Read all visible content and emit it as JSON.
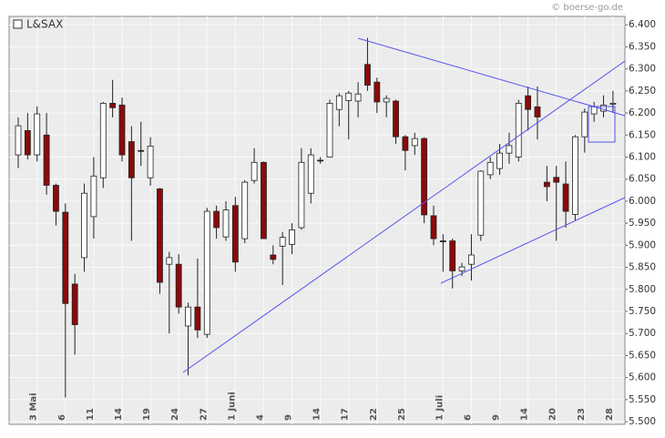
{
  "chart_data": {
    "type": "candlestick",
    "title": "L&SAX",
    "credit": "© boerse-go.de",
    "categories": [
      null,
      null,
      "3 Mai",
      null,
      null,
      "6",
      null,
      null,
      "11",
      null,
      null,
      "14",
      null,
      null,
      "19",
      null,
      null,
      "24",
      null,
      null,
      "27",
      null,
      null,
      "1 Juni",
      null,
      null,
      "4",
      null,
      null,
      "9",
      null,
      null,
      "14",
      null,
      null,
      "17",
      null,
      null,
      "22",
      null,
      null,
      "25",
      null,
      null,
      null,
      "1 Juli",
      null,
      null,
      "6",
      null,
      null,
      "9",
      null,
      null,
      "14",
      null,
      null,
      "20",
      null,
      null,
      "23",
      null,
      null,
      "28"
    ],
    "open": [
      6.105,
      6.16,
      6.105,
      6.15,
      6.036,
      5.975,
      5.812,
      5.872,
      5.965,
      6.053,
      6.222,
      6.218,
      6.135,
      6.115,
      6.053,
      6.028,
      5.857,
      5.857,
      5.717,
      5.76,
      5.698,
      5.977,
      5.919,
      5.99,
      5.915,
      6.047,
      6.088,
      5.878,
      5.898,
      5.902,
      5.94,
      6.018,
      6.093,
      6.1,
      6.208,
      6.228,
      6.227,
      6.31,
      6.27,
      6.225,
      6.227,
      6.146,
      6.126,
      6.142,
      5.967,
      5.91,
      5.91,
      5.842,
      5.857,
      5.923,
      6.06,
      6.074,
      6.109,
      6.1,
      6.239,
      6.214,
      6.043,
      6.054,
      6.039,
      5.97,
      6.146,
      6.198,
      6.204,
      6.222
    ],
    "high": [
      6.19,
      6.2,
      6.215,
      6.2,
      6.04,
      5.995,
      5.835,
      6.04,
      6.1,
      6.225,
      6.275,
      6.235,
      6.17,
      6.18,
      6.145,
      6.03,
      5.885,
      5.88,
      5.77,
      5.87,
      5.985,
      5.99,
      6.0,
      6.01,
      6.048,
      6.12,
      6.09,
      5.9,
      5.93,
      5.95,
      6.12,
      6.12,
      6.1,
      6.23,
      6.245,
      6.25,
      6.27,
      6.37,
      6.28,
      6.24,
      6.23,
      6.15,
      6.155,
      6.145,
      5.99,
      5.925,
      5.915,
      5.86,
      5.925,
      6.07,
      6.1,
      6.13,
      6.155,
      6.23,
      6.26,
      6.26,
      6.08,
      6.08,
      6.09,
      6.15,
      6.21,
      6.225,
      6.24,
      6.25
    ],
    "low": [
      6.075,
      6.095,
      6.09,
      6.015,
      5.945,
      5.555,
      5.652,
      5.84,
      5.915,
      6.03,
      6.19,
      6.09,
      5.91,
      6.08,
      6.035,
      5.79,
      5.7,
      5.745,
      5.605,
      5.69,
      5.69,
      5.915,
      5.91,
      5.84,
      5.905,
      6.04,
      5.915,
      5.857,
      5.81,
      5.88,
      5.935,
      5.995,
      6.085,
      6.1,
      6.17,
      6.14,
      6.19,
      6.25,
      6.2,
      6.19,
      6.13,
      6.07,
      6.105,
      5.95,
      5.9,
      5.84,
      5.802,
      5.83,
      5.82,
      5.91,
      6.05,
      6.06,
      6.085,
      6.09,
      6.16,
      6.14,
      6.0,
      5.91,
      5.94,
      5.955,
      6.11,
      6.18,
      6.19,
      6.2
    ],
    "close": [
      6.171,
      6.105,
      6.198,
      6.036,
      5.977,
      5.768,
      5.72,
      6.018,
      6.057,
      6.222,
      6.212,
      6.105,
      6.053,
      6.113,
      6.125,
      5.816,
      5.872,
      5.76,
      5.76,
      5.708,
      5.977,
      5.94,
      5.98,
      5.862,
      6.043,
      6.088,
      5.915,
      5.868,
      5.918,
      5.935,
      6.088,
      6.105,
      6.092,
      6.222,
      6.239,
      6.245,
      6.243,
      6.263,
      6.225,
      6.233,
      6.146,
      6.115,
      6.142,
      5.969,
      5.915,
      5.909,
      5.842,
      5.851,
      5.878,
      6.068,
      6.088,
      6.109,
      6.126,
      6.222,
      6.208,
      6.191,
      6.033,
      6.043,
      5.977,
      6.146,
      6.202,
      6.214,
      6.218,
      6.222
    ],
    "up_color": "#ffffff",
    "down_color": "#8b0a0a",
    "ylim": [
      5.494,
      6.419
    ],
    "yticks": [
      {
        "value": 5.5,
        "label": "5.500"
      },
      {
        "value": 5.55,
        "label": "5.550"
      },
      {
        "value": 5.6,
        "label": "5.600"
      },
      {
        "value": 5.65,
        "label": "5.650"
      },
      {
        "value": 5.7,
        "label": "5.700"
      },
      {
        "value": 5.75,
        "label": "5.750"
      },
      {
        "value": 5.8,
        "label": "5.800"
      },
      {
        "value": 5.85,
        "label": "5.850"
      },
      {
        "value": 5.9,
        "label": "5.900"
      },
      {
        "value": 5.95,
        "label": "5.950"
      },
      {
        "value": 6.0,
        "label": "6.000"
      },
      {
        "value": 6.05,
        "label": "6.050"
      },
      {
        "value": 6.1,
        "label": "6.100"
      },
      {
        "value": 6.15,
        "label": "6.150"
      },
      {
        "value": 6.2,
        "label": "6.200"
      },
      {
        "value": 6.25,
        "label": "6.250"
      },
      {
        "value": 6.3,
        "label": "6.300"
      },
      {
        "value": 6.35,
        "label": "6.350"
      },
      {
        "value": 6.4,
        "label": "6.400"
      }
    ],
    "grid": true
  }
}
